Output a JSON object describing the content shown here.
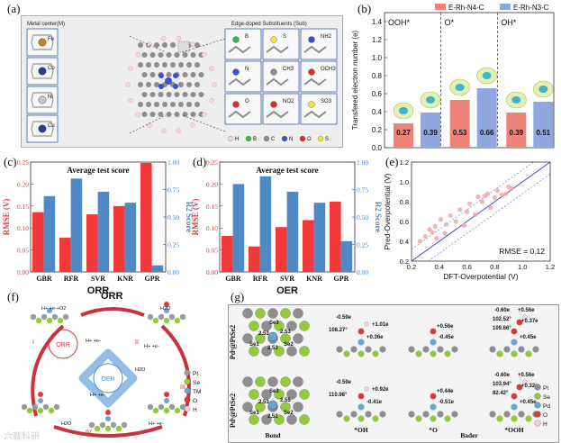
{
  "panel_a": {
    "label": "(a)",
    "metal_center_title": "Metal center(M)",
    "metals": [
      "Fe",
      "Co",
      "Ni",
      "Cu"
    ],
    "subs_title": "Edge-doped Substituents (Sub)",
    "subs": [
      "B",
      "S",
      "NH2",
      "N",
      "CH3",
      "OCH3",
      "O",
      "NO2",
      "SO3"
    ],
    "legend": [
      "H",
      "B",
      "C",
      "N",
      "O",
      "S"
    ],
    "legend_colors": [
      "#f4d6e0",
      "#44b24a",
      "#8d8d8d",
      "#3a4fd0",
      "#e02a2a",
      "#f1e13a"
    ]
  },
  "panel_b": {
    "label": "(b)",
    "chart_data": {
      "type": "bar",
      "title": "",
      "ylabel": "Transfered electron number (e)",
      "ylim": [
        0,
        1.5
      ],
      "yticks": [
        "0.0",
        "0.2",
        "0.4",
        "0.6",
        "0.8",
        "1.0",
        "1.2",
        "1.4"
      ],
      "categories": [
        "OOH*",
        "O*",
        "OH*"
      ],
      "series": [
        {
          "name": "E-Rh-N4-C",
          "color": "#ee8478",
          "values": [
            0.27,
            0.53,
            0.39
          ]
        },
        {
          "name": "E-Rh-N3-C",
          "color": "#8fa6de",
          "values": [
            0.39,
            0.66,
            0.51
          ]
        }
      ],
      "value_labels": [
        [
          "0.27",
          "0.53",
          "0.39"
        ],
        [
          "0.39",
          "0.66",
          "0.51"
        ]
      ]
    },
    "legend_labels": [
      "E-Rh-N4-C",
      "E-Rh-N3-C"
    ],
    "group_labels": [
      "OOH*",
      "O*",
      "OH*"
    ]
  },
  "panel_c": {
    "label": "(c)",
    "chart_data": {
      "type": "bar",
      "title": "Average test score",
      "categories": [
        "GBR",
        "RFR",
        "SVR",
        "KNR",
        "GPR"
      ],
      "ylabel_left": "RMSE (V)",
      "ylabel_right": "R2 Score",
      "left_ylim": [
        0,
        0.25
      ],
      "right_ylim": [
        0,
        1.0
      ],
      "left_ticks": [
        "0.00",
        "0.05",
        "0.10",
        "0.15",
        "0.20",
        "0.25"
      ],
      "right_ticks": [
        "0.00",
        "0.25",
        "0.50",
        "0.75",
        "1.00"
      ],
      "series": [
        {
          "name": "RMSE",
          "axis": "left",
          "color": "#f2393a",
          "values": [
            0.136,
            0.078,
            0.131,
            0.15,
            0.248
          ]
        },
        {
          "name": "R2",
          "axis": "right",
          "color": "#4f89c6",
          "values": [
            0.69,
            0.85,
            0.73,
            0.63,
            0.06
          ]
        }
      ]
    },
    "xlabel_below": "ORR"
  },
  "panel_d": {
    "label": "(d)",
    "chart_data": {
      "type": "bar",
      "title": "Average test score",
      "categories": [
        "GBR",
        "RFR",
        "SVR",
        "KNR",
        "GPR"
      ],
      "ylabel_left": "RMSE (V)",
      "ylabel_right": "R2 Score",
      "left_ylim": [
        0,
        0.25
      ],
      "right_ylim": [
        0,
        1.0
      ],
      "left_ticks": [
        "0.00",
        "0.05",
        "0.10",
        "0.15",
        "0.20",
        "0.25"
      ],
      "right_ticks": [
        "0.00",
        "0.25",
        "0.50",
        "0.75",
        "1.00"
      ],
      "series": [
        {
          "name": "RMSE",
          "axis": "left",
          "color": "#f2393a",
          "values": [
            0.082,
            0.058,
            0.102,
            0.118,
            0.16
          ]
        },
        {
          "name": "R2",
          "axis": "right",
          "color": "#4f89c6",
          "values": [
            0.8,
            0.87,
            0.73,
            0.63,
            0.28
          ]
        }
      ]
    },
    "xlabel_below": "OER"
  },
  "panel_e": {
    "label": "(e)",
    "chart_data": {
      "type": "scatter",
      "xlabel": "DFT-Overpotential (V)",
      "ylabel": "Pred-Overpotential (V)",
      "xlim": [
        0.2,
        1.2
      ],
      "ylim": [
        0.2,
        1.2
      ],
      "xticks": [
        "0.2",
        "0.4",
        "0.6",
        "0.8",
        "1.0",
        "1.2"
      ],
      "yticks": [
        "0.2",
        "0.4",
        "0.6",
        "0.8",
        "1.0",
        "1.2"
      ],
      "annotation": "RMSE = 0.12",
      "x": [
        0.26,
        0.3,
        0.33,
        0.35,
        0.37,
        0.38,
        0.41,
        0.44,
        0.45,
        0.48,
        0.52,
        0.55,
        0.58,
        0.6,
        0.62,
        0.66,
        0.68,
        0.71,
        0.73,
        0.75,
        0.77,
        0.8,
        0.82,
        0.85,
        0.88,
        0.9,
        0.92
      ],
      "y": [
        0.4,
        0.45,
        0.52,
        0.49,
        0.55,
        0.43,
        0.62,
        0.48,
        0.57,
        0.66,
        0.6,
        0.72,
        0.56,
        0.7,
        0.78,
        0.67,
        0.85,
        0.8,
        0.86,
        0.88,
        0.74,
        0.84,
        0.91,
        0.87,
        0.88,
        0.95,
        0.93
      ]
    }
  },
  "panel_f": {
    "label": "(f)",
    "title_orr": "ORR",
    "orr": "ORR",
    "oer": "OER",
    "steps": [
      "H+ +e-+O2",
      "H+ +e-",
      "H2O",
      "H+ +e-",
      "H2O",
      "H+ +e-",
      "H2O",
      "H+ +e-"
    ],
    "roman": [
      "I",
      "II",
      "III",
      "IV"
    ],
    "legend": [
      "Pt",
      "Se",
      "TM",
      "O",
      "H"
    ],
    "legend_colors": [
      "#9a9a9a",
      "#93c93a",
      "#6aa4d7",
      "#d63a3a",
      "#f2d0dc"
    ],
    "watermark": "六载科研"
  },
  "panel_g": {
    "label": "(g)",
    "row_labels": [
      "Pd*@PtSe2",
      "Pd*@PtSe2"
    ],
    "row_label_main": [
      "Pd",
      "Pd"
    ],
    "row_label_sup": [
      "s",
      "s"
    ],
    "row_label_rest": [
      "@PtSe2",
      "@PtSe2"
    ],
    "col_labels": [
      "Bond",
      "*OH",
      "*O",
      "Bader",
      "*OOH"
    ],
    "top": {
      "bond_labels": [
        "Se3",
        "Se1",
        "Se2",
        "2.53",
        "2.53",
        "2.53"
      ],
      "oh": [
        "-0.59e",
        "+1.01e",
        "108.27°",
        "+0.36e"
      ],
      "o": [
        "+0.56e",
        "-0.45e"
      ],
      "ooh": [
        "-0.60e",
        "+0.56e",
        "102.52°",
        "+0.37e",
        "109.66°",
        "+0.45e"
      ]
    },
    "bottom": {
      "bond_labels": [
        "Se3",
        "Se1",
        "Se2",
        "2.53",
        "2.55",
        "2.51"
      ],
      "oh": [
        "-0.59e",
        "+0.92e",
        "110.98°",
        "-0.41e"
      ],
      "o": [
        "+0.44e",
        "-0.51e"
      ],
      "ooh": [
        "-0.60e",
        "+0.56e",
        "103.94°",
        "+0.32e",
        "82.42°",
        "+0.45e"
      ]
    },
    "legend": [
      "Pt",
      "Se",
      "Pd",
      "O",
      "H"
    ],
    "legend_colors": [
      "#8e8e8e",
      "#93c93a",
      "#6aa4d7",
      "#d63a3a",
      "#f2d0dc"
    ]
  }
}
